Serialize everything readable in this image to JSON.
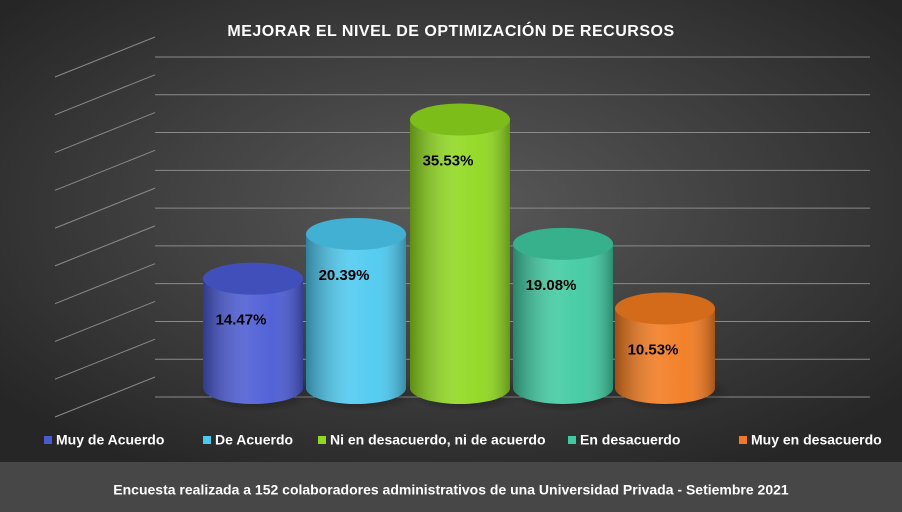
{
  "chart_data": {
    "type": "bar",
    "title": "MEJORAR EL NIVEL DE OPTIMIZACIÓN DE RECURSOS",
    "categories": [
      "Muy de Acuerdo",
      "De Acuerdo",
      "Ni en desacuerdo, ni de acuerdo",
      "En desacuerdo",
      "Muy en desacuerdo"
    ],
    "values": [
      14.47,
      20.39,
      35.53,
      19.08,
      10.53
    ],
    "value_labels": [
      "14.47%",
      "20.39%",
      "35.53%",
      "19.08%",
      "10.53%"
    ],
    "colors": [
      "#4a5ad4",
      "#4cc9f0",
      "#8fd81e",
      "#3ecaa0",
      "#f27a1e"
    ],
    "ylim": [
      0,
      45
    ],
    "yticks": [
      0,
      5,
      10,
      15,
      20,
      25,
      30,
      35,
      40,
      45
    ],
    "grid": true,
    "legend": "bottom",
    "caption": "Encuesta realizada a 152 colaboradores administrativos de una Universidad Privada - Setiembre 2021"
  }
}
